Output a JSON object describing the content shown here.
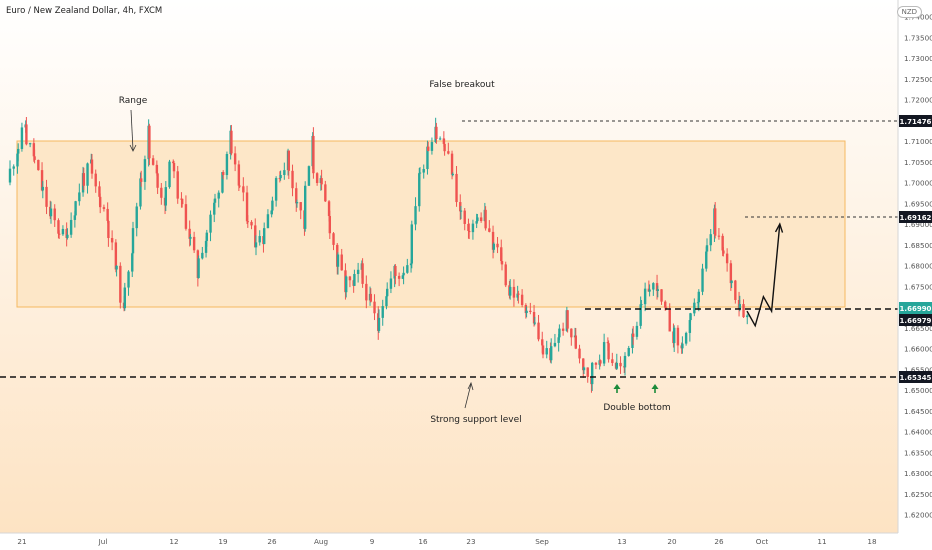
{
  "header": {
    "title": "Euro / New Zealand Dollar, 4h, FXCM",
    "currency_badge": "NZD"
  },
  "colors": {
    "bull": "#26a69a",
    "bear": "#ef5350",
    "range_fill": "#fde7c8",
    "range_border": "#f5b860",
    "label_bg": "#131722"
  },
  "chart_data": {
    "type": "candlestick",
    "title": "Euro / New Zealand Dollar, 4h, FXCM",
    "ylim": [
      1.6125,
      1.745
    ],
    "y_ticks": [
      "1.74000",
      "1.73500",
      "1.73000",
      "1.72500",
      "1.72000",
      "1.71500",
      "1.71000",
      "1.70500",
      "1.70000",
      "1.69500",
      "1.69000",
      "1.68500",
      "1.68000",
      "1.67500",
      "1.67000",
      "1.66500",
      "1.66000",
      "1.65500",
      "1.65000",
      "1.64500",
      "1.64000",
      "1.63500",
      "1.63000",
      "1.62500",
      "1.62000"
    ],
    "x_ticks": [
      "21",
      "Jul",
      "12",
      "19",
      "26",
      "Aug",
      "9",
      "16",
      "23",
      "Sep",
      "13",
      "20",
      "26",
      "Oct",
      "11",
      "18"
    ],
    "price_labels": [
      "1.71476",
      "1.69162",
      "1.66990",
      "1.66979",
      "1.65345"
    ],
    "annotations": {
      "range": "Range",
      "false_breakout": "False breakout",
      "support": "Strong support level",
      "double_bottom": "Double bottom"
    },
    "range_zone": [
      1.6699,
      1.71
    ],
    "series": [
      {
        "values": [
          [
            0,
            1.7
          ],
          [
            1,
            1.706
          ],
          [
            2,
            1.712
          ],
          [
            3,
            1.708
          ],
          [
            4,
            1.701
          ],
          [
            5,
            1.694
          ],
          [
            6,
            1.69
          ],
          [
            7,
            1.687
          ],
          [
            8,
            1.692
          ],
          [
            9,
            1.699
          ],
          [
            10,
            1.703
          ],
          [
            11,
            1.698
          ],
          [
            12,
            1.693
          ],
          [
            13,
            1.683
          ],
          [
            14,
            1.672
          ],
          [
            15,
            1.681
          ],
          [
            16,
            1.696
          ],
          [
            17,
            1.708
          ],
          [
            18,
            1.703
          ],
          [
            19,
            1.697
          ],
          [
            20,
            1.704
          ],
          [
            21,
            1.697
          ],
          [
            22,
            1.69
          ],
          [
            23,
            1.681
          ],
          [
            24,
            1.685
          ],
          [
            25,
            1.692
          ],
          [
            26,
            1.7
          ],
          [
            27,
            1.708
          ],
          [
            28,
            1.702
          ],
          [
            29,
            1.695
          ],
          [
            30,
            1.688
          ],
          [
            31,
            1.687
          ],
          [
            32,
            1.693
          ],
          [
            33,
            1.7
          ],
          [
            34,
            1.705
          ],
          [
            35,
            1.699
          ],
          [
            36,
            1.692
          ],
          [
            37,
            1.705
          ],
          [
            38,
            1.701
          ],
          [
            39,
            1.694
          ],
          [
            40,
            1.684
          ],
          [
            41,
            1.677
          ],
          [
            42,
            1.675
          ],
          [
            43,
            1.678
          ],
          [
            44,
            1.673
          ],
          [
            45,
            1.667
          ],
          [
            46,
            1.672
          ],
          [
            47,
            1.677
          ],
          [
            48,
            1.678
          ],
          [
            49,
            1.681
          ],
          [
            50,
            1.697
          ],
          [
            51,
            1.706
          ],
          [
            52,
            1.712
          ],
          [
            53,
            1.71
          ],
          [
            54,
            1.705
          ],
          [
            55,
            1.696
          ],
          [
            56,
            1.689
          ],
          [
            57,
            1.69
          ],
          [
            58,
            1.692
          ],
          [
            59,
            1.686
          ],
          [
            60,
            1.683
          ],
          [
            61,
            1.676
          ],
          [
            62,
            1.673
          ],
          [
            63,
            1.671
          ],
          [
            64,
            1.668
          ],
          [
            65,
            1.662
          ],
          [
            66,
            1.658
          ],
          [
            67,
            1.662
          ],
          [
            68,
            1.666
          ],
          [
            69,
            1.663
          ],
          [
            70,
            1.658
          ],
          [
            71,
            1.654
          ],
          [
            72,
            1.657
          ],
          [
            73,
            1.66
          ],
          [
            74,
            1.657
          ],
          [
            75,
            1.655
          ],
          [
            76,
            1.662
          ],
          [
            77,
            1.667
          ],
          [
            78,
            1.673
          ],
          [
            79,
            1.675
          ],
          [
            80,
            1.67
          ],
          [
            81,
            1.665
          ],
          [
            82,
            1.661
          ],
          [
            83,
            1.664
          ],
          [
            84,
            1.67
          ],
          [
            85,
            1.679
          ],
          [
            86,
            1.689
          ],
          [
            87,
            1.685
          ],
          [
            88,
            1.679
          ],
          [
            89,
            1.673
          ],
          [
            90,
            1.669
          ]
        ]
      },
      {
        "name": "Projected path",
        "values": [
          [
            90,
            1.669
          ],
          [
            91,
            1.6655
          ],
          [
            92,
            1.6725
          ],
          [
            93,
            1.669
          ],
          [
            94,
            1.69
          ]
        ]
      }
    ]
  }
}
